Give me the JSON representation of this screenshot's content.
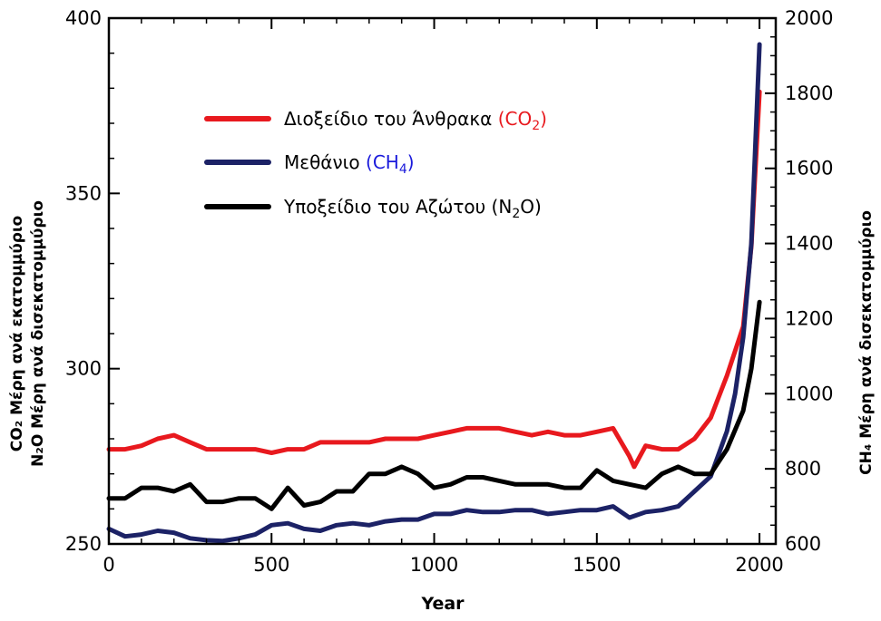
{
  "chart_data": {
    "type": "line",
    "xlabel": "Year",
    "ylabel_left_line1": "CO₂ Μέρη ανά εκατομμύριο",
    "ylabel_left_line2": "N₂O Μέρη ανά δισεκατομμύριο",
    "ylabel_right": "CH₄ Μέρη ανά δισεκατομμύριο",
    "xlim": [
      0,
      2050
    ],
    "ylim_left": [
      250,
      400
    ],
    "ylim_right": [
      600,
      2000
    ],
    "x_ticks": [
      "0",
      "500",
      "1000",
      "1500",
      "2000"
    ],
    "left_ticks": [
      "250",
      "300",
      "350",
      "400"
    ],
    "right_ticks": [
      "600",
      "800",
      "1000",
      "1200",
      "1400",
      "1600",
      "1800",
      "2000"
    ],
    "grid": false,
    "legend_position": "top-center",
    "legend": [
      {
        "text": "Διοξείδιο του Άνθρακα",
        "formula_base": "CO",
        "formula_sub": "2",
        "formula_color": "#e8191e",
        "color": "#e8191e"
      },
      {
        "text": "Μεθάνιο",
        "formula_base": "CH",
        "formula_sub": "4",
        "formula_color": "#1a1adb",
        "color": "#1c2266"
      },
      {
        "text": "Υποξείδιο του Αζώτου",
        "formula_base": "N",
        "formula_sub": "2",
        "formula_after": "O",
        "formula_color": "#000000",
        "color": "#000000"
      }
    ],
    "series": [
      {
        "name": "Διοξείδιο του Άνθρακα (CO₂)",
        "axis": "left",
        "color": "#e8191e",
        "x": [
          0,
          50,
          100,
          150,
          200,
          250,
          300,
          350,
          400,
          450,
          500,
          550,
          600,
          650,
          700,
          750,
          800,
          850,
          900,
          950,
          1000,
          1050,
          1100,
          1150,
          1200,
          1250,
          1300,
          1350,
          1400,
          1450,
          1500,
          1550,
          1600,
          1615,
          1650,
          1700,
          1750,
          1800,
          1850,
          1900,
          1950,
          1975,
          2000
        ],
        "y": [
          277,
          277,
          278,
          280,
          281,
          279,
          277,
          277,
          277,
          277,
          276,
          277,
          277,
          279,
          279,
          279,
          279,
          280,
          280,
          280,
          281,
          282,
          283,
          283,
          283,
          282,
          281,
          282,
          281,
          281,
          282,
          283,
          275,
          272,
          278,
          277,
          277,
          280,
          286,
          298,
          312,
          335,
          379
        ]
      },
      {
        "name": "Μεθάνιο (CH₄)",
        "axis": "right",
        "color": "#1c2266",
        "x": [
          0,
          50,
          100,
          150,
          200,
          250,
          300,
          350,
          400,
          450,
          500,
          550,
          600,
          650,
          700,
          750,
          800,
          850,
          900,
          950,
          1000,
          1050,
          1100,
          1150,
          1200,
          1250,
          1300,
          1350,
          1400,
          1450,
          1500,
          1550,
          1600,
          1650,
          1700,
          1750,
          1800,
          1850,
          1900,
          1925,
          1950,
          1975,
          2000
        ],
        "y": [
          640,
          620,
          625,
          635,
          630,
          615,
          610,
          608,
          615,
          625,
          650,
          655,
          640,
          635,
          650,
          655,
          650,
          660,
          665,
          665,
          680,
          680,
          690,
          685,
          685,
          690,
          690,
          680,
          685,
          690,
          690,
          700,
          670,
          685,
          690,
          700,
          740,
          780,
          900,
          1000,
          1150,
          1400,
          1930
        ]
      },
      {
        "name": "Υποξείδιο του Αζώτου (N₂O)",
        "axis": "left",
        "color": "#000000",
        "x": [
          0,
          50,
          100,
          150,
          200,
          250,
          300,
          350,
          400,
          450,
          500,
          550,
          600,
          650,
          700,
          750,
          800,
          850,
          900,
          950,
          1000,
          1050,
          1100,
          1150,
          1200,
          1250,
          1300,
          1350,
          1400,
          1450,
          1500,
          1550,
          1600,
          1650,
          1700,
          1750,
          1800,
          1850,
          1900,
          1950,
          1975,
          2000
        ],
        "y": [
          263,
          263,
          266,
          266,
          265,
          267,
          262,
          262,
          263,
          263,
          260,
          266,
          261,
          262,
          265,
          265,
          270,
          270,
          272,
          270,
          266,
          267,
          269,
          269,
          268,
          267,
          267,
          267,
          266,
          266,
          271,
          268,
          267,
          266,
          270,
          272,
          270,
          270,
          277,
          288,
          300,
          319
        ]
      }
    ]
  }
}
